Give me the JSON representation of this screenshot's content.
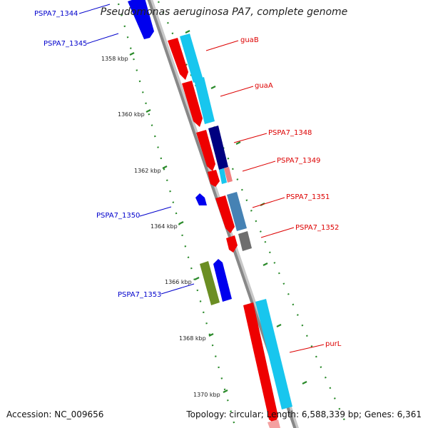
{
  "map_title": "Pseudomonas aeruginosa PA7, complete genome",
  "accession_text": "Accession: NC_009656",
  "summary_text": "Topology: circular; Length: 6,588,339 bp; Genes: 6,361",
  "colors": {
    "backbone": "#8a8a8a",
    "ticks": "#2a8a2a",
    "gene_label_forward": "#dd0000",
    "gene_label_reverse": "#0000cc"
  },
  "tick_labels": [
    {
      "kbp": 1358,
      "label": "1358 kbp"
    },
    {
      "kbp": 1360,
      "label": "1360 kbp"
    },
    {
      "kbp": 1362,
      "label": "1362 kbp"
    },
    {
      "kbp": 1364,
      "label": "1364 kbp"
    },
    {
      "kbp": 1366,
      "label": "1366 kbp"
    },
    {
      "kbp": 1368,
      "label": "1368 kbp"
    },
    {
      "kbp": 1370,
      "label": "1370 kbp"
    }
  ],
  "genes": [
    {
      "name": "PSPA7_1344",
      "strand": "reverse"
    },
    {
      "name": "PSPA7_1345",
      "strand": "reverse"
    },
    {
      "name": "guaB",
      "strand": "forward"
    },
    {
      "name": "guaA",
      "strand": "forward"
    },
    {
      "name": "PSPA7_1348",
      "strand": "forward"
    },
    {
      "name": "PSPA7_1349",
      "strand": "forward"
    },
    {
      "name": "PSPA7_1350",
      "strand": "reverse"
    },
    {
      "name": "PSPA7_1351",
      "strand": "forward"
    },
    {
      "name": "PSPA7_1352",
      "strand": "forward"
    },
    {
      "name": "PSPA7_1353",
      "strand": "reverse"
    },
    {
      "name": "purL",
      "strand": "forward"
    }
  ]
}
